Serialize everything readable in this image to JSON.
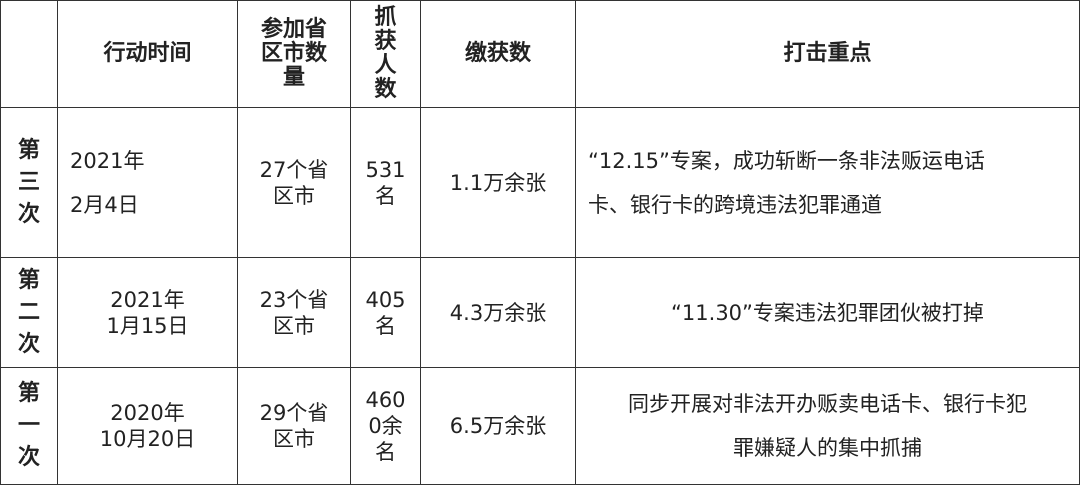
{
  "table": {
    "header": [
      [
        "行动时间"
      ],
      [
        "参加省",
        "区市数",
        "量"
      ],
      [
        "抓",
        "获",
        "人",
        "数"
      ],
      [
        "缴获数"
      ],
      [
        "打击重点"
      ]
    ],
    "rows": [
      {
        "label": [
          "第",
          "三",
          "次"
        ],
        "cells": [
          [
            "2021年",
            "2月4日"
          ],
          [
            "27个省",
            "区市"
          ],
          [
            "531",
            "名"
          ],
          [
            "1.1万余张"
          ],
          [
            "“12.15”专案，成功斩断一条非法贩运电话",
            "卡、银行卡的跨境违法犯罪通道"
          ]
        ]
      },
      {
        "label": [
          "第",
          "二",
          "次"
        ],
        "cells": [
          [
            "2021年",
            "1月15日"
          ],
          [
            "23个省",
            "区市"
          ],
          [
            "405",
            "名"
          ],
          [
            "4.3万余张"
          ],
          [
            "“11.30”专案违法犯罪团伙被打掉"
          ]
        ]
      },
      {
        "label": [
          "第",
          "一",
          "次"
        ],
        "cells": [
          [
            "2020年",
            "10月20日"
          ],
          [
            "29个省",
            "区市"
          ],
          [
            "460",
            "0余",
            "名"
          ],
          [
            "6.5万余张"
          ],
          [
            "同步开展对非法开办贩卖电话卡、银行卡犯",
            "罪嫌疑人的集中抓捕"
          ]
        ]
      }
    ]
  }
}
